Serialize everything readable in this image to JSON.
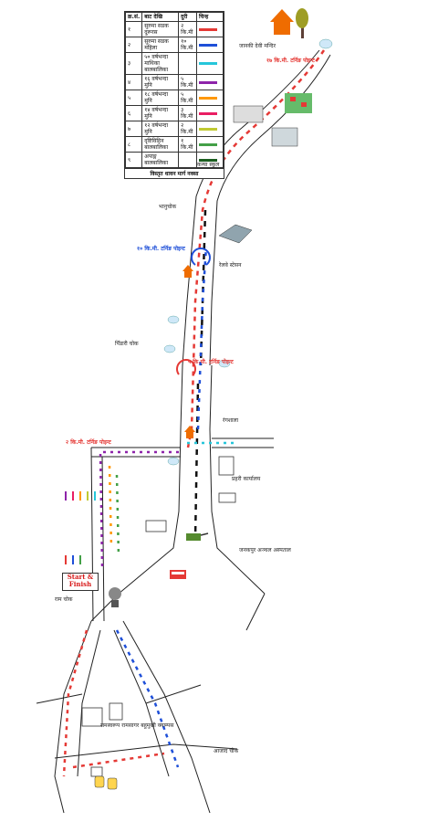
{
  "legend": {
    "header": [
      "क्र.सं.",
      "बाट देखि",
      "दुरी",
      "चिन्ह"
    ],
    "rows": [
      {
        "no": "१",
        "from": "सुरुमा सडक दुरूरस",
        "dist": "२ कि.मी",
        "color": "#e53935"
      },
      {
        "no": "२",
        "from": "सुरुमा सडक महिला",
        "dist": "१० कि.मी",
        "color": "#1e4fd8"
      },
      {
        "no": "३",
        "from": "५० वर्षभन्दा माथिका बालबालिका",
        "dist": "",
        "color": "#26c6da"
      },
      {
        "no": "४",
        "from": "१६ वर्षभन्दा मुनि",
        "dist": "५ कि.मी",
        "color": "#8e24aa"
      },
      {
        "no": "५",
        "from": "१८ वर्षभन्दा मुनि",
        "dist": "५ कि.मी",
        "color": "#ff9800"
      },
      {
        "no": "६",
        "from": "१४ वर्षभन्दा मुनि",
        "dist": "३ कि.मी",
        "color": "#e91e63"
      },
      {
        "no": "७",
        "from": "१२ वर्षभन्दा मुनि",
        "dist": "२ कि.मी",
        "color": "#c0ca33"
      },
      {
        "no": "८",
        "from": "दृष्टिविहिन बालबालिका",
        "dist": "१ कि.मी",
        "color": "#43a047"
      },
      {
        "no": "९",
        "from": "अपाङ्ग बालबालिका",
        "dist": "",
        "color": "#1b5e20"
      }
    ],
    "footer": "विस्तृत धावन मार्ग नक्सा"
  },
  "labels": {
    "janaki": "जानकी देवी मन्दिर",
    "km17": "१७ कि.मी. टर्निङ पोइन्ट",
    "kanya": "कन्या स्कूल",
    "bhanuchowk": "भानुचोक",
    "km10": "१० कि.मी. टर्निङ पोइन्ट",
    "railway": "रेलवे स्टेसन",
    "km5": "५ कि.मी. टर्निङ पोइन्ट",
    "km2": "२ कि.मी. टर्निङ पोइन्ट",
    "startfinish": "Start & Finish",
    "ramchowk": "राम चोक",
    "pidari": "पिँडारी चोक",
    "stadium": "रंगशाला",
    "police": "प्रहरी कार्यालय",
    "hospital": "जनकपुर अञ्चल अस्पताल",
    "campus": "रामस्वरूप रामसागर बहुमुखी क्याम्पस",
    "ajad": "आजाद चोक"
  },
  "route_colors": {
    "red": "#e53935",
    "blue": "#1e4fd8",
    "cyan": "#26c6da",
    "purple": "#8e24aa",
    "orange": "#ff9800",
    "pink": "#e91e63",
    "lime": "#c0ca33",
    "green": "#43a047"
  }
}
